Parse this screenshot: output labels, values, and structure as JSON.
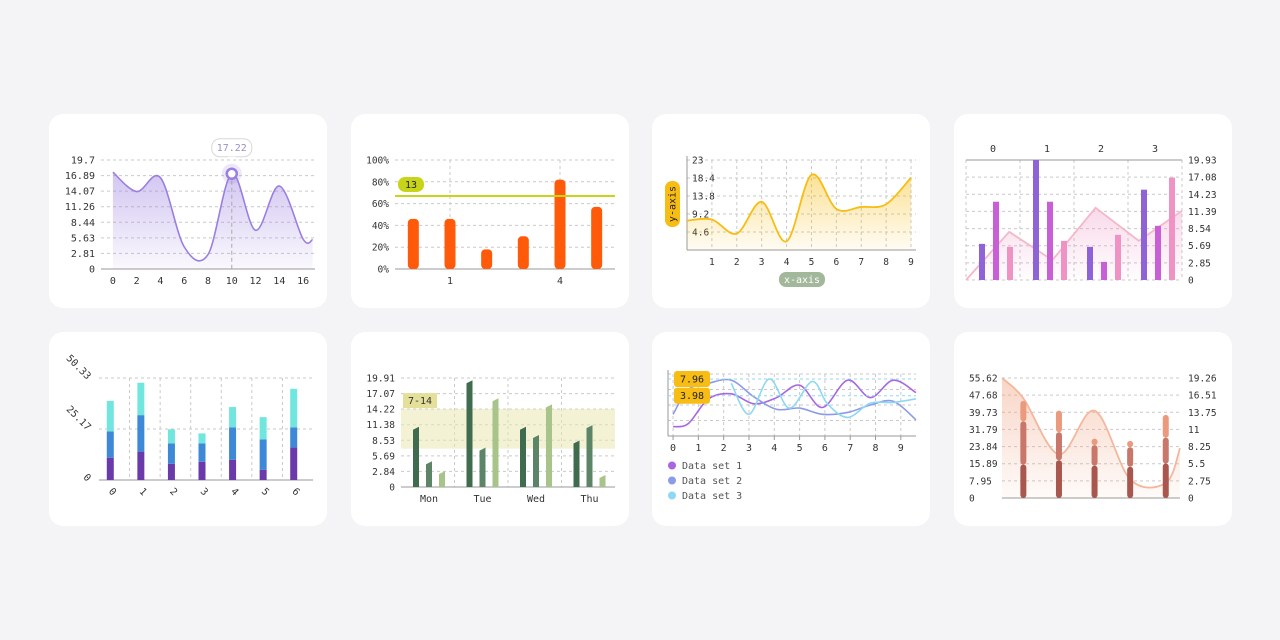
{
  "colors": {
    "purple": "#9b7fe0",
    "orange": "#ff5a0a",
    "lime": "#c8d419",
    "yellow": "#f7bd14",
    "magenta": "#c95fd6",
    "pink": "#ee93c4",
    "teal": "#70e6de",
    "blue": "#3e88d8",
    "indigo": "#6b3aaa",
    "green_dark": "#3f6b4e",
    "green_light": "#a9c48a",
    "salmon": "#f0a382",
    "brown": "#a9564f"
  },
  "chart_data": [
    {
      "type": "area",
      "x": [
        0,
        2,
        4,
        6,
        8,
        10,
        12,
        14,
        16
      ],
      "values": [
        17.5,
        14,
        16.5,
        4,
        2.6,
        17.22,
        7,
        15,
        5.4
      ],
      "extra_x": 16.8,
      "extra_value": 5.3,
      "y_ticks": [
        "0",
        "2.81",
        "5.63",
        "8.44",
        "11.26",
        "14.07",
        "16.89",
        "19.7"
      ],
      "x_ticks": [
        "0",
        "2",
        "4",
        "6",
        "8",
        "10",
        "12",
        "14",
        "16"
      ],
      "ylim": [
        0,
        19.7
      ],
      "xlim": [
        -1,
        17
      ],
      "tooltip": {
        "x": 10,
        "label": "17.22"
      }
    },
    {
      "type": "bar",
      "values": [
        46,
        46,
        18,
        30,
        82,
        57
      ],
      "y_ticks": [
        "0%",
        "20%",
        "40%",
        "60%",
        "80%",
        "100%"
      ],
      "x_ticks": [
        "1",
        "4"
      ],
      "x_tick_index": [
        1,
        4
      ],
      "ylim": [
        0,
        100
      ],
      "threshold": {
        "value": 67,
        "label": "13"
      }
    },
    {
      "type": "area",
      "x": [
        0,
        1,
        2,
        3,
        4,
        5,
        6,
        7,
        8,
        9
      ],
      "values": [
        7.5,
        7.8,
        4.2,
        12.3,
        2.2,
        19.2,
        10.5,
        11,
        11.7,
        18.5
      ],
      "y_ticks": [
        "23",
        "18.4",
        "13.8",
        "9.2",
        "4.6"
      ],
      "y_tick_values": [
        23,
        18.4,
        13.8,
        9.2,
        4.6
      ],
      "x_ticks": [
        "1",
        "2",
        "3",
        "4",
        "5",
        "6",
        "7",
        "8",
        "9"
      ],
      "ylim": [
        0,
        23
      ],
      "xlim": [
        0,
        9.2
      ],
      "xlabel": "x-axis",
      "ylabel": "y-axis"
    },
    {
      "type": "bar",
      "categories": [
        "0",
        "1",
        "2",
        "3"
      ],
      "series": [
        {
          "values": [
            6,
            19.93,
            5.5,
            15
          ]
        },
        {
          "values": [
            13,
            13,
            3,
            9
          ]
        },
        {
          "values": [
            5.5,
            6.5,
            7.5,
            17
          ]
        }
      ],
      "line": [
        0,
        8,
        3.3,
        12,
        6.5,
        11.5
      ],
      "y_ticks_right": [
        "0",
        "2.85",
        "5.69",
        "8.54",
        "11.39",
        "14.23",
        "17.08",
        "19.93"
      ],
      "ylim": [
        0,
        19.93
      ]
    },
    {
      "type": "bar",
      "categories": [
        "0",
        "1",
        "2",
        "3",
        "4",
        "5",
        "6"
      ],
      "series": [
        {
          "values": [
            11,
            14,
            8,
            9,
            10,
            5,
            16
          ]
        },
        {
          "values": [
            13,
            18,
            10,
            9,
            16,
            15,
            10
          ]
        },
        {
          "values": [
            15,
            16,
            7,
            5,
            10,
            11,
            19
          ]
        }
      ],
      "y_ticks": [
        "0",
        "25.17",
        "50.33"
      ],
      "ylim": [
        0,
        50.33
      ]
    },
    {
      "type": "bar",
      "categories": [
        "Mon",
        "Tue",
        "Wed",
        "Thu"
      ],
      "series": [
        {
          "values": [
            11,
            19.5,
            11,
            8.5
          ]
        },
        {
          "values": [
            4.7,
            7.2,
            9.5,
            11.3
          ]
        },
        {
          "values": [
            2.9,
            16.2,
            15.1,
            2.2
          ]
        }
      ],
      "y_ticks": [
        "0",
        "2.84",
        "5.69",
        "8.53",
        "11.38",
        "14.22",
        "17.07",
        "19.91"
      ],
      "ylim": [
        0,
        19.91
      ],
      "band": {
        "from": 7,
        "to": 14.22,
        "label": "7-14"
      }
    },
    {
      "type": "line",
      "x_ticks": [
        "0",
        "1",
        "2",
        "3",
        "4",
        "5",
        "6",
        "7",
        "8",
        "9"
      ],
      "xlim": [
        -0.2,
        9.6
      ],
      "ylim": [
        0,
        10
      ],
      "series": [
        {
          "name": "Data set 1",
          "x": [
            0,
            0.6,
            1.4,
            2.3,
            3.2,
            4.1,
            5,
            5.9,
            6.9,
            7.8,
            8.7,
            9.6
          ],
          "y": [
            1.5,
            2,
            6,
            6.8,
            5.2,
            6.2,
            8.2,
            4.6,
            9,
            6.2,
            9,
            7
          ]
        },
        {
          "name": "Data set 2",
          "x": [
            0,
            0.6,
            1.4,
            2.3,
            3.2,
            4.1,
            5,
            5.9,
            6.9,
            7.8,
            8.7,
            9.6
          ],
          "y": [
            3.5,
            7.5,
            8.5,
            9,
            6.3,
            4.3,
            4.5,
            3.5,
            3.8,
            5,
            5.6,
            2.6
          ]
        },
        {
          "name": "Data set 3",
          "x": [
            2.3,
            3,
            3.8,
            4.6,
            5.5,
            6.1,
            6.9,
            7.8,
            8.7,
            9.6
          ],
          "y": [
            8.5,
            3.5,
            9.2,
            4.5,
            8.8,
            5.2,
            3,
            5.3,
            5.4,
            6
          ]
        }
      ],
      "markers": [
        {
          "y": 9.2,
          "label": "7.96"
        },
        {
          "y": 6.5,
          "label": "3.98"
        }
      ]
    },
    {
      "type": "bar",
      "x": [
        0.6,
        1.6,
        2.6,
        3.6,
        4.6
      ],
      "xlim": [
        0,
        5
      ],
      "stacks": [
        [
          15.5,
          20,
          9.5
        ],
        [
          17.5,
          13,
          10
        ],
        [
          15,
          9.5,
          3
        ],
        [
          14.5,
          9,
          3
        ],
        [
          16,
          12,
          10.5
        ]
      ],
      "curve": {
        "x": [
          0,
          0.6,
          1.6,
          2.6,
          3.6,
          4.6,
          5
        ],
        "y": [
          19.26,
          16,
          7,
          14,
          3,
          2.4,
          8
        ]
      },
      "y_ticks_left": [
        "0",
        "7.95",
        "15.89",
        "23.84",
        "31.79",
        "39.73",
        "47.68",
        "55.62"
      ],
      "y_ticks_right": [
        "0",
        "2.75",
        "5.5",
        "8.25",
        "11",
        "13.75",
        "16.51",
        "19.26"
      ],
      "ylim_left": [
        0,
        55.62
      ],
      "ylim_right": [
        0,
        19.26
      ]
    }
  ]
}
